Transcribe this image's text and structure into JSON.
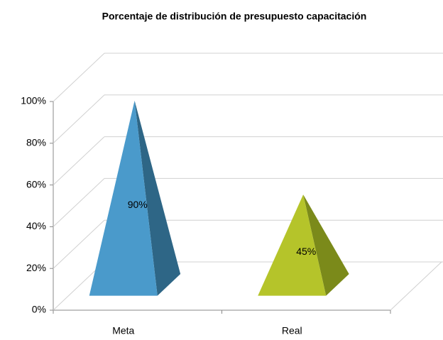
{
  "chart_data": {
    "type": "pyramid3d",
    "title": "Porcentaje de distribución de presupuesto capacitación",
    "categories": [
      "Meta",
      "Real"
    ],
    "values": [
      90,
      45
    ],
    "value_labels": [
      "90%",
      "45%"
    ],
    "colors": [
      "#4a9acb",
      "#b5c42a"
    ],
    "side_colors": [
      "#2e6686",
      "#7b8a1a"
    ],
    "ylim": [
      0,
      100
    ],
    "yticks": [
      {
        "value": 0,
        "label": "0%"
      },
      {
        "value": 20,
        "label": "20%"
      },
      {
        "value": 40,
        "label": "40%"
      },
      {
        "value": 60,
        "label": "60%"
      },
      {
        "value": 80,
        "label": "80%"
      },
      {
        "value": 100,
        "label": "100%"
      }
    ],
    "grid": true
  }
}
